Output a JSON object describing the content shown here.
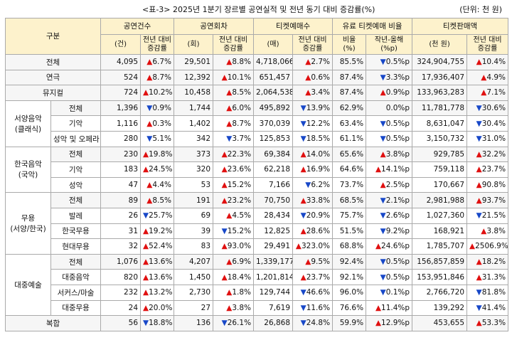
{
  "header": {
    "title": "<표-3> 2025년 1분기 장르별 공연실적 및 전년 동기 대비 증감률(%)",
    "unit": "(단위: 천 원)"
  },
  "table": {
    "corner": "구분",
    "groups": [
      "공연건수",
      "공연회차",
      "티켓예매수",
      "유료 티켓예매 비율",
      "티켓판매액"
    ],
    "subheaders": [
      [
        "(건)"
      ],
      [
        "전년 대비",
        "증감률"
      ],
      [
        "(회)"
      ],
      [
        "전년 대비",
        "증감률"
      ],
      [
        "(매)"
      ],
      [
        "전년 대비",
        "증감률"
      ],
      [
        "비율",
        "(%)"
      ],
      [
        "작년-올해",
        "(%p)"
      ],
      [
        "(천 원)"
      ],
      [
        "전년 대비",
        "증감률"
      ]
    ],
    "sections": [
      {
        "rows": [
          {
            "label": "전체",
            "cells": [
              "4,095",
              "▲6.7%",
              "29,501",
              "▲8.8%",
              "4,718,066",
              "▲2.7%",
              "85.5%",
              "▼0.5%p",
              "324,904,755",
              "▲10.4%"
            ]
          }
        ]
      },
      {
        "rows": [
          {
            "label": "연극",
            "cells": [
              "524",
              "▲8.7%",
              "12,392",
              "▲10.1%",
              "651,457",
              "▲0.6%",
              "87.4%",
              "▼3.3%p",
              "17,936,407",
              "▲4.9%"
            ]
          }
        ]
      },
      {
        "rows": [
          {
            "label": "뮤지컬",
            "cells": [
              "724",
              "▲10.2%",
              "10,458",
              "▲8.5%",
              "2,064,538",
              "▲3.4%",
              "87.4%",
              "▲0.9%p",
              "133,963,283",
              "▲7.1%"
            ]
          }
        ]
      },
      {
        "label": [
          "서양음악",
          "(클래식)"
        ],
        "rows": [
          {
            "label": "전체",
            "cells": [
              "1,396",
              "▼0.9%",
              "1,744",
              "▲6.0%",
              "495,892",
              "▼13.9%",
              "62.9%",
              "0.0%p",
              "11,781,778",
              "▼30.6%"
            ]
          },
          {
            "label": "기악",
            "cells": [
              "1,116",
              "▲0.3%",
              "1,402",
              "▲8.7%",
              "370,039",
              "▼12.2%",
              "63.4%",
              "▼0.5%p",
              "8,631,047",
              "▼30.4%"
            ]
          },
          {
            "label": "성악 및 오페라",
            "cells": [
              "280",
              "▼5.1%",
              "342",
              "▼3.7%",
              "125,853",
              "▼18.5%",
              "61.1%",
              "▼0.5%p",
              "3,150,732",
              "▼31.0%"
            ]
          }
        ]
      },
      {
        "label": [
          "한국음악",
          "(국악)"
        ],
        "rows": [
          {
            "label": "전체",
            "cells": [
              "230",
              "▲19.8%",
              "373",
              "▲22.3%",
              "69,384",
              "▲14.0%",
              "65.6%",
              "▲3.8%p",
              "929,785",
              "▲32.2%"
            ]
          },
          {
            "label": "기악",
            "cells": [
              "183",
              "▲24.5%",
              "320",
              "▲23.6%",
              "62,218",
              "▲16.9%",
              "64.6%",
              "▲14.1%p",
              "759,118",
              "▲23.7%"
            ]
          },
          {
            "label": "성악",
            "cells": [
              "47",
              "▲4.4%",
              "53",
              "▲15.2%",
              "7,166",
              "▼6.2%",
              "73.7%",
              "▲2.5%p",
              "170,667",
              "▲90.8%"
            ]
          }
        ]
      },
      {
        "label": [
          "무용",
          "(서양/한국)"
        ],
        "rows": [
          {
            "label": "전체",
            "cells": [
              "89",
              "▲8.5%",
              "191",
              "▲23.2%",
              "70,750",
              "▲33.8%",
              "68.5%",
              "▼2.1%p",
              "2,981,988",
              "▲93.7%"
            ]
          },
          {
            "label": "발레",
            "cells": [
              "26",
              "▼25.7%",
              "69",
              "▲4.5%",
              "28,434",
              "▼20.9%",
              "75.7%",
              "▼2.6%p",
              "1,027,360",
              "▼21.5%"
            ]
          },
          {
            "label": "한국무용",
            "cells": [
              "31",
              "▲19.2%",
              "39",
              "▼15.2%",
              "12,825",
              "▲28.6%",
              "51.5%",
              "▼9.2%p",
              "168,921",
              "▲3.8%"
            ]
          },
          {
            "label": "현대무용",
            "cells": [
              "32",
              "▲52.4%",
              "83",
              "▲93.0%",
              "29,491",
              "▲323.0%",
              "68.8%",
              "▲24.6%p",
              "1,785,707",
              "▲2506.9%"
            ]
          }
        ]
      },
      {
        "label": [
          "대중예술"
        ],
        "rows": [
          {
            "label": "전체",
            "cells": [
              "1,076",
              "▲13.6%",
              "4,207",
              "▲6.9%",
              "1,339,177",
              "▲9.5%",
              "92.4%",
              "▼0.5%p",
              "156,857,859",
              "▲18.2%"
            ]
          },
          {
            "label": "대중음악",
            "cells": [
              "820",
              "▲13.6%",
              "1,450",
              "▲18.4%",
              "1,201,814",
              "▲23.7%",
              "92.1%",
              "▼0.5%p",
              "153,951,846",
              "▲31.3%"
            ]
          },
          {
            "label": "서커스/마술",
            "cells": [
              "232",
              "▲13.2%",
              "2,730",
              "▲1.8%",
              "129,744",
              "▼46.6%",
              "96.0%",
              "▼0.1%p",
              "2,766,720",
              "▼81.8%"
            ]
          },
          {
            "label": "대중무용",
            "cells": [
              "24",
              "▲20.0%",
              "27",
              "▲3.8%",
              "7,619",
              "▼11.6%",
              "76.6%",
              "▲11.4%p",
              "139,292",
              "▼41.4%"
            ]
          }
        ]
      },
      {
        "rows": [
          {
            "label": "복합",
            "cells": [
              "56",
              "▼18.8%",
              "136",
              "▼26.1%",
              "26,868",
              "▼24.8%",
              "59.9%",
              "▲12.9%p",
              "453,655",
              "▲53.3%"
            ]
          }
        ]
      }
    ]
  }
}
